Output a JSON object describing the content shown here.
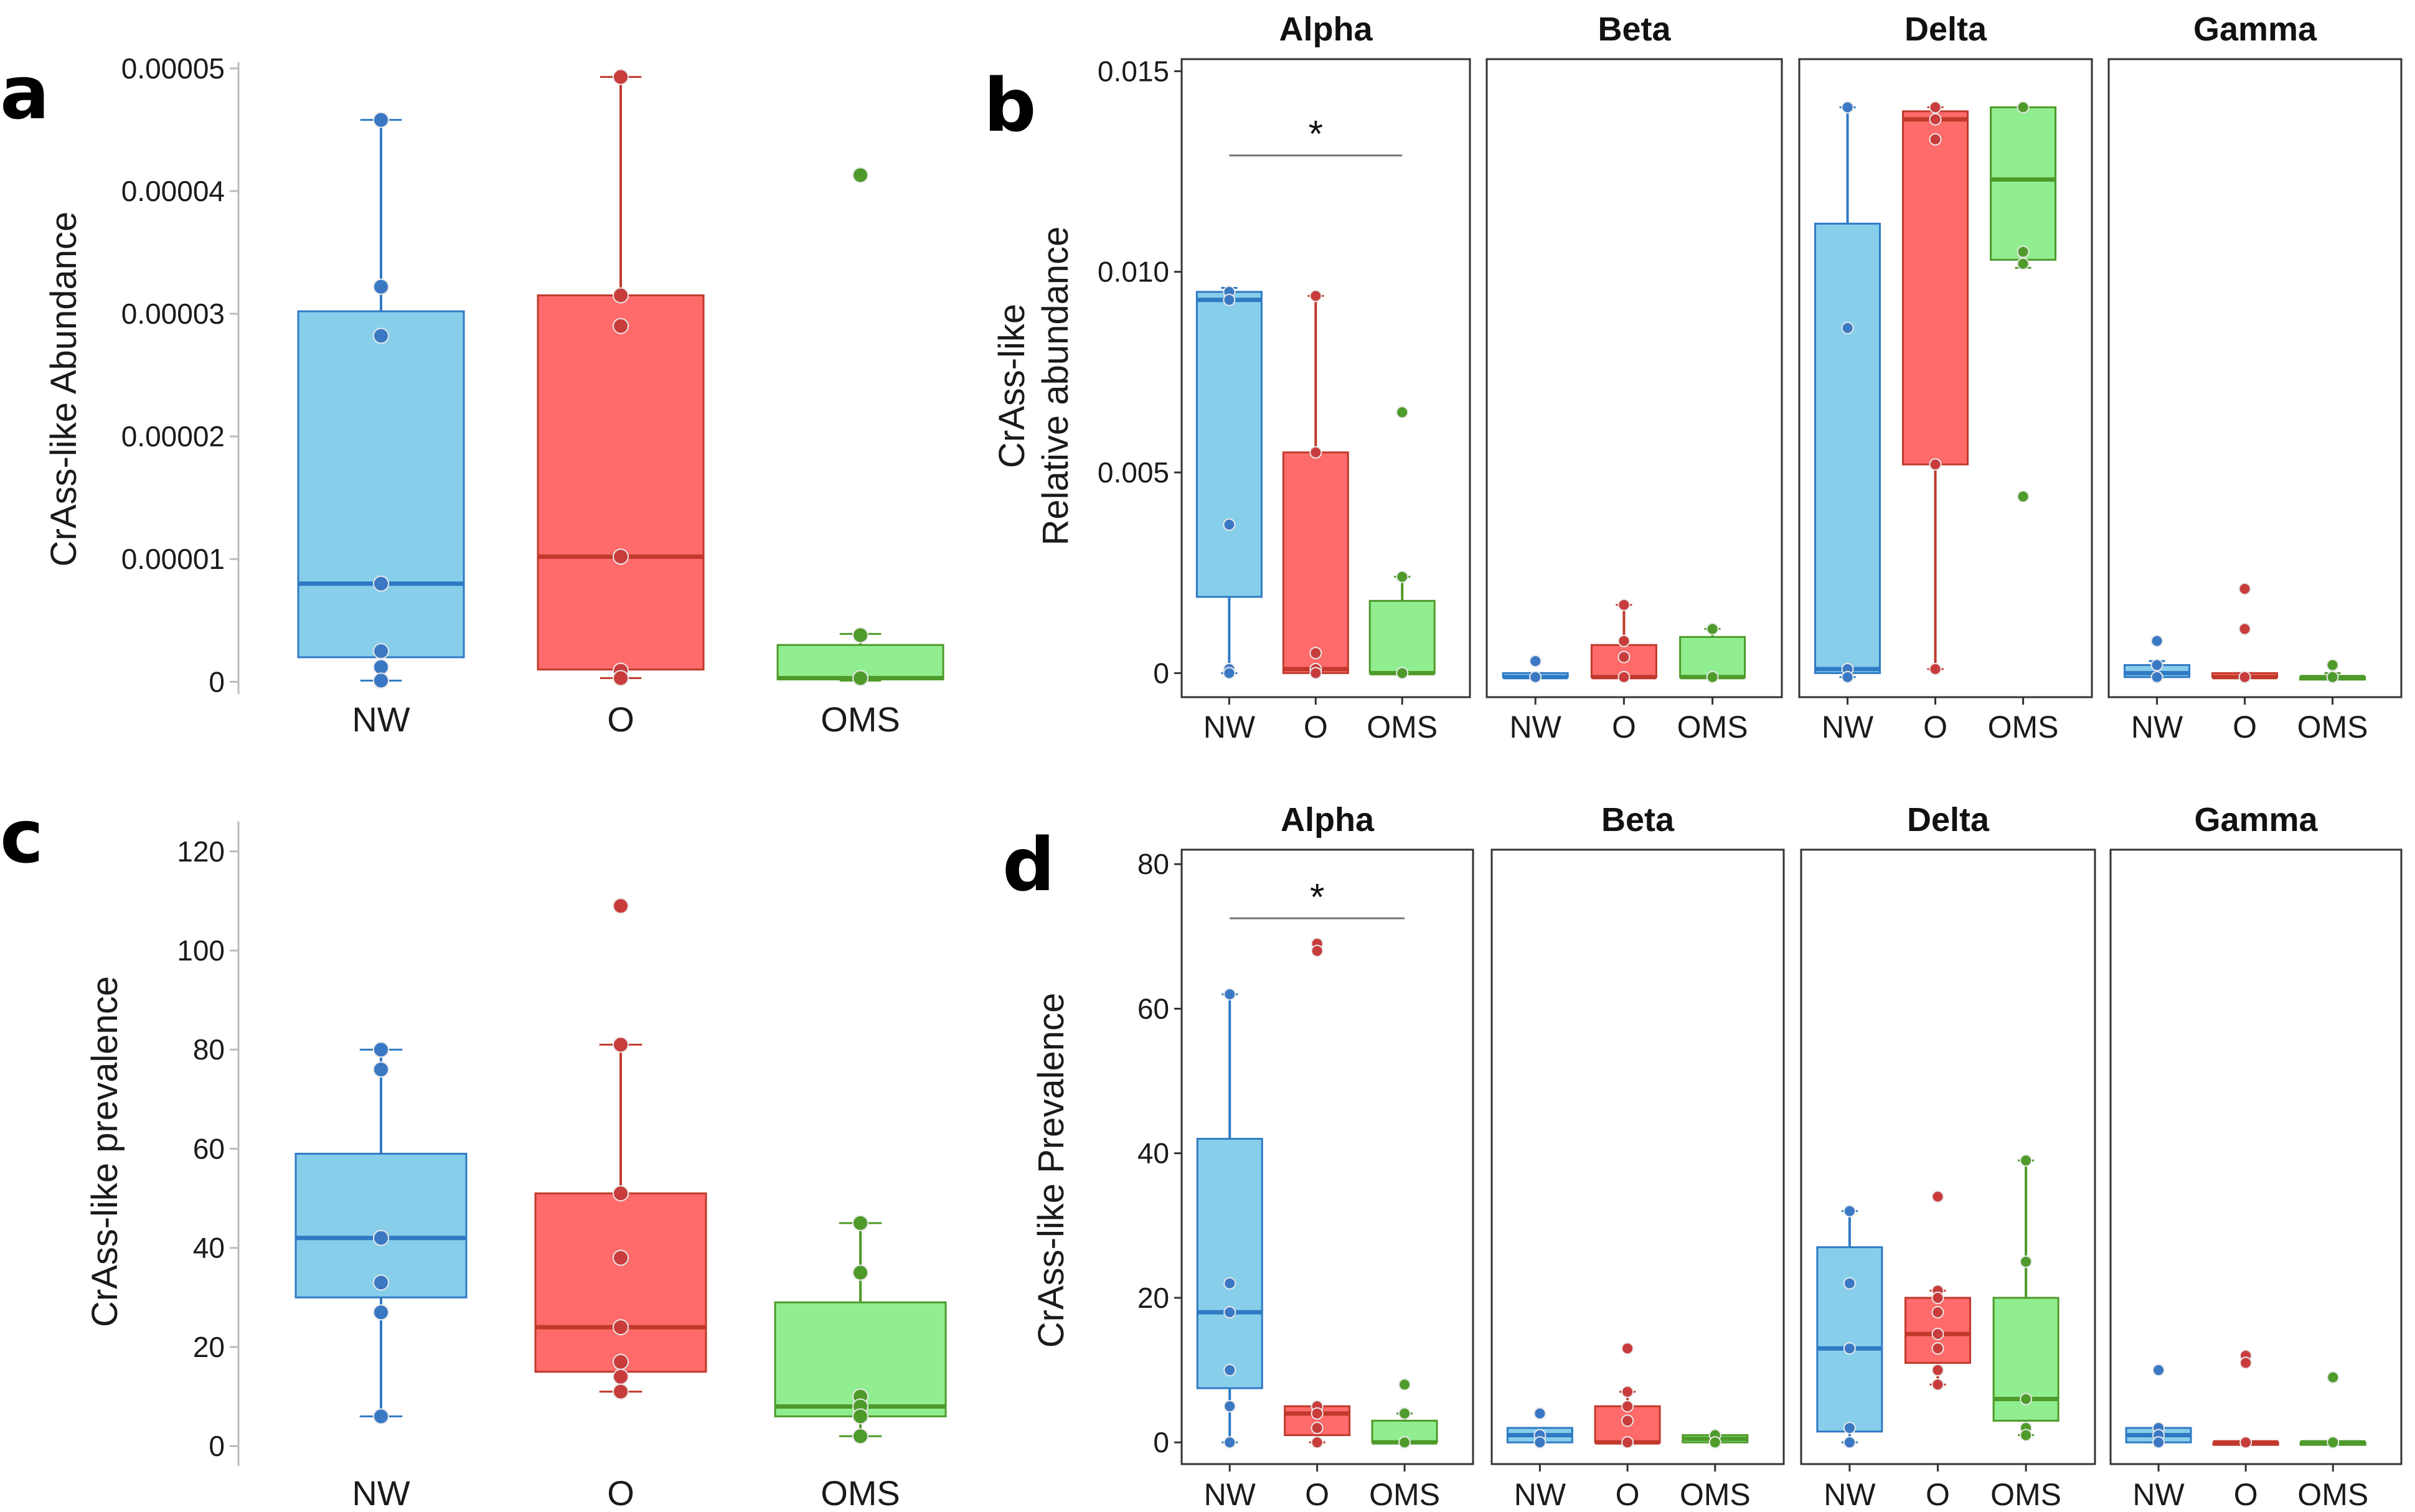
{
  "colors": {
    "NW": {
      "fill": "#87ceeb",
      "stroke": "#2f7ac4",
      "point": "#3a78c4"
    },
    "O": {
      "fill": "#ff6b6b",
      "stroke": "#c0392b",
      "point": "#c83c3c"
    },
    "OMS": {
      "fill": "#90ee90",
      "stroke": "#4e9a2a",
      "point": "#4e9a2a"
    }
  },
  "chart_data": [
    {
      "panel": "a",
      "type": "box",
      "title": "",
      "xlabel": "",
      "ylabel": "CrAss-like Abundance",
      "categories": [
        "NW",
        "O",
        "OMS"
      ],
      "ylim": [
        -1e-06,
        5.05e-05
      ],
      "yticks": [
        0,
        1e-05,
        2e-05,
        3e-05,
        4e-05,
        5e-05
      ],
      "ytick_labels": [
        "0",
        "0.00001",
        "0.00002",
        "0.00003",
        "0.00004",
        "0.00005"
      ],
      "boxes": [
        {
          "group": "NW",
          "q1": 2e-06,
          "median": 8e-06,
          "q3": 3.02e-05,
          "whisker_low": 1e-07,
          "whisker_high": 4.58e-05,
          "points": [
            4.58e-05,
            3.22e-05,
            2.82e-05,
            8e-06,
            2.5e-06,
            1.2e-06,
            1e-07
          ]
        },
        {
          "group": "O",
          "q1": 1e-06,
          "median": 1.02e-05,
          "q3": 3.15e-05,
          "whisker_low": 3e-07,
          "whisker_high": 4.93e-05,
          "points": [
            4.93e-05,
            3.15e-05,
            2.9e-05,
            1.02e-05,
            9e-07,
            3e-07
          ]
        },
        {
          "group": "OMS",
          "q1": 2e-07,
          "median": 3e-07,
          "q3": 3e-06,
          "whisker_low": 1e-07,
          "whisker_high": 3.9e-06,
          "points": [
            3.8e-06,
            3e-07
          ],
          "outliers": [
            4.13e-05
          ]
        }
      ]
    },
    {
      "panel": "c",
      "type": "box",
      "title": "",
      "xlabel": "",
      "ylabel": "CrAss-like prevalence",
      "categories": [
        "NW",
        "O",
        "OMS"
      ],
      "ylim": [
        -4,
        126
      ],
      "yticks": [
        0,
        20,
        40,
        60,
        80,
        100,
        120
      ],
      "ytick_labels": [
        "0",
        "20",
        "40",
        "60",
        "80",
        "100",
        "120"
      ],
      "boxes": [
        {
          "group": "NW",
          "q1": 30,
          "median": 42,
          "q3": 59,
          "whisker_low": 6,
          "whisker_high": 80,
          "points": [
            80,
            76,
            42,
            33,
            27,
            6
          ]
        },
        {
          "group": "O",
          "q1": 15,
          "median": 24,
          "q3": 51,
          "whisker_low": 11,
          "whisker_high": 81,
          "points": [
            81,
            51,
            38,
            24,
            17,
            14,
            11
          ],
          "outliers": [
            109
          ]
        },
        {
          "group": "OMS",
          "q1": 6,
          "median": 8,
          "q3": 29,
          "whisker_low": 2,
          "whisker_high": 45,
          "points": [
            45,
            35,
            10,
            8,
            6,
            2
          ]
        }
      ]
    },
    {
      "panel": "b",
      "type": "box-faceted",
      "title": "",
      "xlabel": "",
      "ylabel": [
        "CrAss-like",
        "Relative abundance"
      ],
      "facets": [
        "Alpha",
        "Beta",
        "Delta",
        "Gamma"
      ],
      "categories": [
        "NW",
        "O",
        "OMS"
      ],
      "ylim": [
        -0.0006,
        0.0153
      ],
      "yticks": [
        0,
        0.005,
        0.01,
        0.015
      ],
      "ytick_labels": [
        "0",
        "0.005",
        "0.010",
        "0.015"
      ],
      "significance": [
        {
          "facet": "Alpha",
          "from": "NW",
          "to": "OMS",
          "y": 0.0129,
          "label": "*"
        }
      ],
      "boxes": [
        {
          "facet": "Alpha",
          "group": "NW",
          "q1": 0.0019,
          "median": 0.0093,
          "q3": 0.0095,
          "whisker_low": 0.0,
          "whisker_high": 0.0096,
          "points": [
            0.0095,
            0.0093,
            0.0037,
            0.0001,
            0.0
          ]
        },
        {
          "facet": "Alpha",
          "group": "O",
          "q1": 0.0,
          "median": 0.0001,
          "q3": 0.0055,
          "whisker_low": 0.0,
          "whisker_high": 0.0094,
          "points": [
            0.0094,
            0.0055,
            0.0005,
            0.0001,
            0.0
          ]
        },
        {
          "facet": "Alpha",
          "group": "OMS",
          "q1": 0.0,
          "median": 0.0,
          "q3": 0.0018,
          "whisker_low": 0.0,
          "whisker_high": 0.0024,
          "points": [
            0.0024,
            0.0
          ],
          "outliers": [
            0.0065
          ]
        },
        {
          "facet": "Beta",
          "group": "NW",
          "q1": -0.0001,
          "median": -0.0001,
          "q3": 0.0,
          "whisker_low": -0.0001,
          "whisker_high": 0.0,
          "points": [
            0.0003,
            -0.0001
          ]
        },
        {
          "facet": "Beta",
          "group": "O",
          "q1": -0.0001,
          "median": -0.0001,
          "q3": 0.0007,
          "whisker_low": -0.0001,
          "whisker_high": 0.0017,
          "points": [
            0.0017,
            0.0008,
            0.0004,
            -0.0001
          ]
        },
        {
          "facet": "Beta",
          "group": "OMS",
          "q1": -0.0001,
          "median": -0.0001,
          "q3": 0.0009,
          "whisker_low": -0.0001,
          "whisker_high": 0.0011,
          "points": [
            0.0011,
            -0.0001
          ]
        },
        {
          "facet": "Delta",
          "group": "NW",
          "q1": 0.0,
          "median": 0.0001,
          "q3": 0.0112,
          "whisker_low": -0.0001,
          "whisker_high": 0.0141,
          "points": [
            0.0141,
            0.0086,
            0.0001,
            -0.0001
          ]
        },
        {
          "facet": "Delta",
          "group": "O",
          "q1": 0.0052,
          "median": 0.0138,
          "q3": 0.014,
          "whisker_low": 0.0001,
          "whisker_high": 0.0141,
          "points": [
            0.0141,
            0.0138,
            0.0133,
            0.0052,
            0.0001
          ]
        },
        {
          "facet": "Delta",
          "group": "OMS",
          "q1": 0.0103,
          "median": 0.0123,
          "q3": 0.0141,
          "whisker_low": 0.0101,
          "whisker_high": 0.0141,
          "points": [
            0.0141,
            0.0105,
            0.0102
          ],
          "outliers": [
            0.0044
          ]
        },
        {
          "facet": "Gamma",
          "group": "NW",
          "q1": -0.0001,
          "median": 0.0,
          "q3": 0.0002,
          "whisker_low": -0.0001,
          "whisker_high": 0.0003,
          "points": [
            0.0008,
            0.0002,
            -0.0001
          ]
        },
        {
          "facet": "Gamma",
          "group": "O",
          "q1": -0.0001,
          "median": -0.0001,
          "q3": 0.0,
          "whisker_low": -0.0001,
          "whisker_high": 0.0,
          "points": [
            -0.0001
          ],
          "outliers": [
            0.0021,
            0.0011
          ]
        },
        {
          "facet": "Gamma",
          "group": "OMS",
          "q1": -0.0001,
          "median": -0.0001,
          "q3": -0.0001,
          "whisker_low": -0.0001,
          "whisker_high": 0.0,
          "points": [
            0.0002,
            -0.0001
          ]
        }
      ]
    },
    {
      "panel": "d",
      "type": "box-faceted",
      "title": "",
      "xlabel": "",
      "ylabel": [
        "CrAss-like Prevalence"
      ],
      "facets": [
        "Alpha",
        "Beta",
        "Delta",
        "Gamma"
      ],
      "categories": [
        "NW",
        "O",
        "OMS"
      ],
      "ylim": [
        -3,
        82
      ],
      "yticks": [
        0,
        20,
        40,
        60,
        80
      ],
      "ytick_labels": [
        "0",
        "20",
        "40",
        "60",
        "80"
      ],
      "significance": [
        {
          "facet": "Alpha",
          "from": "NW",
          "to": "OMS",
          "y": 72.5,
          "label": "*"
        }
      ],
      "boxes": [
        {
          "facet": "Alpha",
          "group": "NW",
          "q1": 7.5,
          "median": 18,
          "q3": 42,
          "whisker_low": 0,
          "whisker_high": 62,
          "points": [
            62,
            22,
            18,
            10,
            5,
            0
          ]
        },
        {
          "facet": "Alpha",
          "group": "O",
          "q1": 1,
          "median": 4,
          "q3": 5,
          "whisker_low": 0,
          "whisker_high": 5,
          "points": [
            5,
            4,
            2,
            0
          ],
          "outliers": [
            69,
            68
          ]
        },
        {
          "facet": "Alpha",
          "group": "OMS",
          "q1": 0,
          "median": 0,
          "q3": 3,
          "whisker_low": 0,
          "whisker_high": 4,
          "points": [
            4,
            0
          ],
          "outliers": [
            8
          ]
        },
        {
          "facet": "Beta",
          "group": "NW",
          "q1": 0,
          "median": 1,
          "q3": 2,
          "whisker_low": 0,
          "whisker_high": 2,
          "points": [
            4,
            1,
            0
          ]
        },
        {
          "facet": "Beta",
          "group": "O",
          "q1": 0,
          "median": 0,
          "q3": 5,
          "whisker_low": 0,
          "whisker_high": 7,
          "points": [
            7,
            5,
            3,
            0
          ],
          "outliers": [
            13
          ]
        },
        {
          "facet": "Beta",
          "group": "OMS",
          "q1": 0,
          "median": 0.5,
          "q3": 1,
          "whisker_low": 0,
          "whisker_high": 1,
          "points": [
            1,
            0
          ]
        },
        {
          "facet": "Delta",
          "group": "NW",
          "q1": 1.5,
          "median": 13,
          "q3": 27,
          "whisker_low": 0,
          "whisker_high": 32,
          "points": [
            32,
            22,
            13,
            2,
            0
          ]
        },
        {
          "facet": "Delta",
          "group": "O",
          "q1": 11,
          "median": 15,
          "q3": 20,
          "whisker_low": 8,
          "whisker_high": 21,
          "points": [
            21,
            20,
            18,
            15,
            13,
            10,
            8
          ],
          "outliers": [
            34
          ]
        },
        {
          "facet": "Delta",
          "group": "OMS",
          "q1": 3,
          "median": 6,
          "q3": 20,
          "whisker_low": 1,
          "whisker_high": 39,
          "points": [
            39,
            25,
            6,
            2,
            1
          ]
        },
        {
          "facet": "Gamma",
          "group": "NW",
          "q1": 0,
          "median": 1,
          "q3": 2,
          "whisker_low": 0,
          "whisker_high": 2,
          "points": [
            2,
            1,
            0
          ],
          "outliers": [
            10
          ]
        },
        {
          "facet": "Gamma",
          "group": "O",
          "q1": 0,
          "median": 0,
          "q3": 0,
          "whisker_low": 0,
          "whisker_high": 0,
          "points": [
            0
          ],
          "outliers": [
            12,
            11
          ]
        },
        {
          "facet": "Gamma",
          "group": "OMS",
          "q1": 0,
          "median": 0,
          "q3": 0,
          "whisker_low": 0,
          "whisker_high": 0,
          "points": [
            0
          ],
          "outliers": [
            9
          ]
        }
      ]
    }
  ]
}
